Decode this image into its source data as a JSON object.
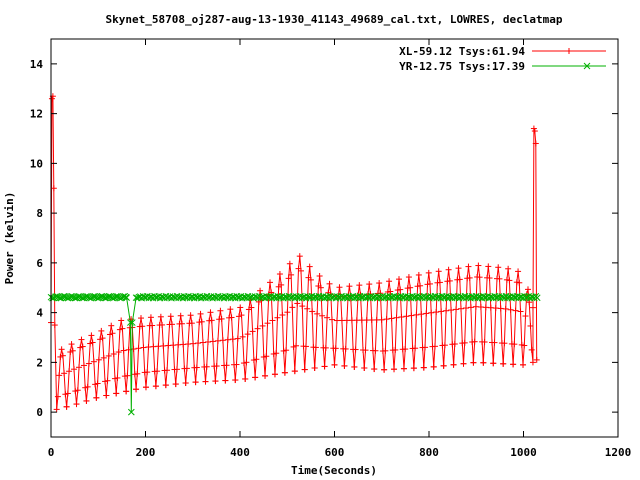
{
  "chart_data": {
    "type": "line",
    "title": "Skynet_58708_oj287-aug-13-1930_41143_49689_cal.txt, LOWRES, declatmap",
    "xlabel": "Time(Seconds)",
    "ylabel": "Power (kelvin)",
    "xlim": [
      0,
      1200
    ],
    "ylim": [
      -1,
      15
    ],
    "xticks": [
      0,
      200,
      400,
      600,
      800,
      1000,
      1200
    ],
    "yticks": [
      0,
      2,
      4,
      6,
      8,
      10,
      12,
      14
    ],
    "grid": false,
    "legend_position": "top-right",
    "series": [
      {
        "name": "XL-59.12 Tsys:61.94",
        "color": "#ff0000",
        "marker": "+",
        "start": {
          "x": [
            0,
            2,
            4,
            6,
            8
          ],
          "y": [
            3.6,
            12.6,
            12.7,
            9.0,
            3.5
          ]
        },
        "scan_period_s": 21,
        "scan_start_s": 12,
        "scan_end_s": 1020,
        "baseline_envelope": {
          "x": [
            10,
            50,
            100,
            200,
            300,
            400,
            500,
            600,
            700,
            800,
            900,
            1000,
            1020
          ],
          "y": [
            0.1,
            0.3,
            0.6,
            1.0,
            1.2,
            1.3,
            1.6,
            1.9,
            1.7,
            1.8,
            2.0,
            1.9,
            2.0
          ]
        },
        "peak_envelope": {
          "x": [
            10,
            50,
            100,
            150,
            200,
            300,
            400,
            450,
            500,
            520,
            560,
            600,
            700,
            800,
            900,
            960,
            1000,
            1020
          ],
          "y": [
            2.4,
            2.8,
            3.2,
            3.7,
            3.8,
            3.9,
            4.2,
            5.0,
            5.8,
            6.4,
            5.6,
            5.0,
            5.2,
            5.6,
            5.9,
            5.8,
            5.6,
            4.2
          ]
        },
        "end": {
          "x": [
            1020,
            1022,
            1024,
            1026,
            1028
          ],
          "y": [
            4.2,
            11.4,
            11.3,
            10.8,
            2.1
          ]
        }
      },
      {
        "name": "YR-12.75 Tsys:17.39",
        "color": "#00b000",
        "marker": "x",
        "level": 4.62,
        "x_range": [
          0,
          1030
        ],
        "dip": {
          "x": [
            160,
            168,
            170,
            172,
            180
          ],
          "y": [
            4.6,
            3.6,
            0.0,
            3.6,
            4.6
          ]
        }
      }
    ]
  }
}
